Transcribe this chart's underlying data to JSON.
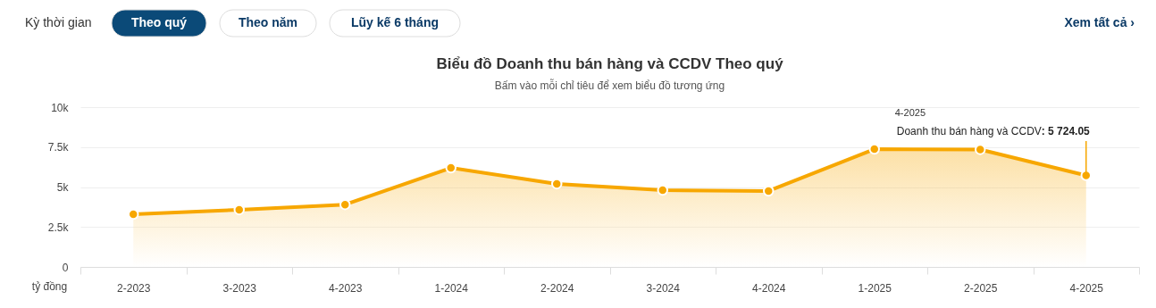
{
  "chart_data": {
    "type": "area",
    "title": "Biểu đồ Doanh thu bán hàng và CCDV Theo quý",
    "subtitle": "Bấm vào mỗi chỉ tiêu để xem biểu đồ tương ứng",
    "ylabel": "tỷ đồng",
    "categories": [
      "2-2023",
      "3-2023",
      "4-2023",
      "1-2024",
      "2-2024",
      "3-2024",
      "4-2024",
      "1-2025",
      "2-2025",
      "4-2025"
    ],
    "series": [
      {
        "name": "Doanh thu bán hàng và CCDV",
        "color": "#f7a700",
        "values": [
          3290,
          3580,
          3900,
          6200,
          5200,
          4800,
          4750,
          7370,
          7350,
          5724.05
        ]
      }
    ],
    "ylim": [
      0,
      10000
    ],
    "yticks": [
      {
        "value": 0,
        "label": "0"
      },
      {
        "value": 2500,
        "label": "2.5k"
      },
      {
        "value": 5000,
        "label": "5k"
      },
      {
        "value": 7500,
        "label": "7.5k"
      },
      {
        "value": 10000,
        "label": "10k"
      }
    ],
    "grid": "y",
    "marker": "circle",
    "legend": false,
    "annotations": [
      {
        "text": ": 5 724.05",
        "x": "4-2025",
        "y": 5724.05
      },
      "4-2025",
      "Kỳ thời gian",
      "Theo quý",
      "Theo năm",
      "Lũy kế 6 tháng",
      "Xem tất cả ›"
    ]
  }
}
